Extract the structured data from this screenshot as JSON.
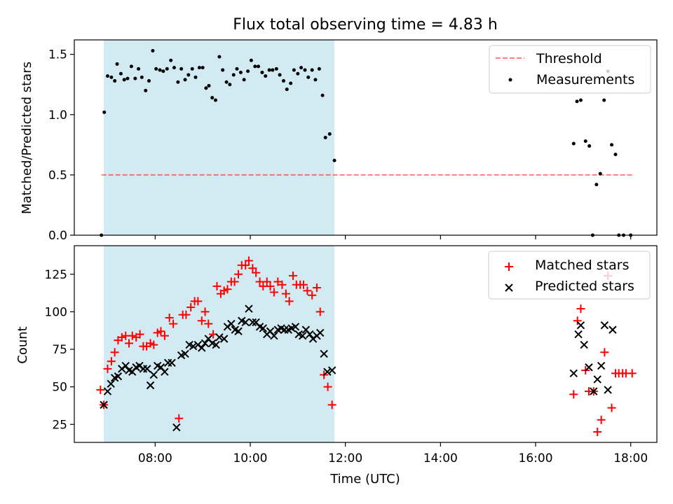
{
  "title": "Flux total observing time = 4.83 h",
  "colors": {
    "shade": "#add8e6",
    "threshold": "#ff0000",
    "measurement": "#000000",
    "matched": "#ff0000",
    "predicted": "#000000"
  },
  "chart_data": [
    {
      "type": "scatter",
      "ylabel": "Matched/Predicted stars",
      "ylim": [
        0,
        1.62
      ],
      "yticks": [
        0.0,
        0.5,
        1.0,
        1.5
      ],
      "ytick_labels": [
        "0.0",
        "0.5",
        "1.0",
        "1.5"
      ],
      "xlim": [
        6.3,
        18.55
      ],
      "xticks": [
        8,
        10,
        12,
        14,
        16,
        18
      ],
      "shaded_span": [
        6.92,
        11.77
      ],
      "threshold": {
        "name": "Threshold",
        "value": 0.5,
        "x_range": [
          6.87,
          18.05
        ],
        "style": "dashed"
      },
      "legend": {
        "placement": "top-right",
        "entries": [
          "Threshold",
          "Measurements"
        ]
      },
      "series": [
        {
          "name": "Measurements",
          "points": [
            [
              6.87,
              0.0
            ],
            [
              6.93,
              1.02
            ],
            [
              7.0,
              1.32
            ],
            [
              7.08,
              1.31
            ],
            [
              7.15,
              1.28
            ],
            [
              7.2,
              1.42
            ],
            [
              7.28,
              1.34
            ],
            [
              7.35,
              1.29
            ],
            [
              7.42,
              1.3
            ],
            [
              7.5,
              1.4
            ],
            [
              7.58,
              1.3
            ],
            [
              7.65,
              1.38
            ],
            [
              7.72,
              1.31
            ],
            [
              7.8,
              1.2
            ],
            [
              7.87,
              1.28
            ],
            [
              7.95,
              1.53
            ],
            [
              8.02,
              1.38
            ],
            [
              8.1,
              1.37
            ],
            [
              8.17,
              1.36
            ],
            [
              8.25,
              1.38
            ],
            [
              8.33,
              1.45
            ],
            [
              8.4,
              1.39
            ],
            [
              8.48,
              1.27
            ],
            [
              8.55,
              1.38
            ],
            [
              8.63,
              1.29
            ],
            [
              8.7,
              1.33
            ],
            [
              8.78,
              1.38
            ],
            [
              8.85,
              1.31
            ],
            [
              8.93,
              1.39
            ],
            [
              9.0,
              1.39
            ],
            [
              9.07,
              1.22
            ],
            [
              9.13,
              1.24
            ],
            [
              9.2,
              1.14
            ],
            [
              9.27,
              1.12
            ],
            [
              9.35,
              1.48
            ],
            [
              9.42,
              1.37
            ],
            [
              9.5,
              1.27
            ],
            [
              9.57,
              1.25
            ],
            [
              9.65,
              1.33
            ],
            [
              9.72,
              1.38
            ],
            [
              9.8,
              1.35
            ],
            [
              9.87,
              1.29
            ],
            [
              9.95,
              1.36
            ],
            [
              10.02,
              1.45
            ],
            [
              10.1,
              1.4
            ],
            [
              10.17,
              1.4
            ],
            [
              10.25,
              1.35
            ],
            [
              10.32,
              1.32
            ],
            [
              10.4,
              1.37
            ],
            [
              10.47,
              1.37
            ],
            [
              10.55,
              1.38
            ],
            [
              10.62,
              1.33
            ],
            [
              10.7,
              1.28
            ],
            [
              10.77,
              1.21
            ],
            [
              10.85,
              1.26
            ],
            [
              10.92,
              1.37
            ],
            [
              11.0,
              1.34
            ],
            [
              11.07,
              1.39
            ],
            [
              11.15,
              1.37
            ],
            [
              11.22,
              1.31
            ],
            [
              11.3,
              1.37
            ],
            [
              11.37,
              1.29
            ],
            [
              11.45,
              1.38
            ],
            [
              11.52,
              1.16
            ],
            [
              11.58,
              0.81
            ],
            [
              11.67,
              0.84
            ],
            [
              11.77,
              0.62
            ],
            [
              16.8,
              0.76
            ],
            [
              16.87,
              1.11
            ],
            [
              16.95,
              1.12
            ],
            [
              17.05,
              0.78
            ],
            [
              17.13,
              0.74
            ],
            [
              17.2,
              0.0
            ],
            [
              17.28,
              0.42
            ],
            [
              17.36,
              0.51
            ],
            [
              17.44,
              1.12
            ],
            [
              17.52,
              1.36
            ],
            [
              17.6,
              0.75
            ],
            [
              17.68,
              0.67
            ],
            [
              17.75,
              0.0
            ],
            [
              17.85,
              0.0
            ],
            [
              18.0,
              0.0
            ]
          ]
        }
      ]
    },
    {
      "type": "scatter",
      "xlabel": "Time (UTC)",
      "ylabel": "Count",
      "ylim": [
        13,
        144
      ],
      "yticks": [
        25,
        50,
        75,
        100,
        125
      ],
      "ytick_labels": [
        "25",
        "50",
        "75",
        "100",
        "125"
      ],
      "xlim": [
        6.3,
        18.55
      ],
      "xticks": [
        8,
        10,
        12,
        14,
        16,
        18
      ],
      "xtick_labels": [
        "08:00",
        "10:00",
        "12:00",
        "14:00",
        "16:00",
        "18:00"
      ],
      "shaded_span": [
        6.92,
        11.77
      ],
      "legend": {
        "placement": "top-right",
        "entries": [
          "Matched stars",
          "Predicted stars"
        ]
      },
      "series": [
        {
          "name": "Matched stars",
          "marker": "+",
          "points": [
            [
              6.85,
              48
            ],
            [
              6.92,
              38
            ],
            [
              7.0,
              62
            ],
            [
              7.08,
              67
            ],
            [
              7.15,
              73
            ],
            [
              7.22,
              81
            ],
            [
              7.3,
              83
            ],
            [
              7.38,
              84
            ],
            [
              7.45,
              79
            ],
            [
              7.52,
              84
            ],
            [
              7.6,
              83
            ],
            [
              7.68,
              85
            ],
            [
              7.75,
              77
            ],
            [
              7.82,
              77
            ],
            [
              7.9,
              79
            ],
            [
              7.97,
              78
            ],
            [
              8.05,
              86
            ],
            [
              8.12,
              87
            ],
            [
              8.2,
              84
            ],
            [
              8.3,
              96
            ],
            [
              8.38,
              92
            ],
            [
              8.5,
              29
            ],
            [
              8.58,
              98
            ],
            [
              8.65,
              98
            ],
            [
              8.75,
              103
            ],
            [
              8.83,
              107
            ],
            [
              8.9,
              107
            ],
            [
              8.98,
              94
            ],
            [
              9.05,
              100
            ],
            [
              9.12,
              92
            ],
            [
              9.22,
              85
            ],
            [
              9.3,
              117
            ],
            [
              9.38,
              112
            ],
            [
              9.45,
              114
            ],
            [
              9.52,
              115
            ],
            [
              9.6,
              120
            ],
            [
              9.67,
              120
            ],
            [
              9.75,
              125
            ],
            [
              9.82,
              131
            ],
            [
              9.9,
              131
            ],
            [
              9.97,
              134
            ],
            [
              10.05,
              129
            ],
            [
              10.12,
              126
            ],
            [
              10.2,
              120
            ],
            [
              10.27,
              117
            ],
            [
              10.35,
              120
            ],
            [
              10.42,
              117
            ],
            [
              10.5,
              113
            ],
            [
              10.58,
              120
            ],
            [
              10.67,
              118
            ],
            [
              10.75,
              112
            ],
            [
              10.82,
              107
            ],
            [
              10.9,
              124
            ],
            [
              10.97,
              118
            ],
            [
              11.05,
              118
            ],
            [
              11.12,
              118
            ],
            [
              11.2,
              114
            ],
            [
              11.3,
              111
            ],
            [
              11.4,
              116
            ],
            [
              11.47,
              100
            ],
            [
              11.55,
              58
            ],
            [
              11.63,
              50
            ],
            [
              11.72,
              38
            ],
            [
              16.8,
              45
            ],
            [
              16.88,
              94
            ],
            [
              16.95,
              102
            ],
            [
              17.05,
              61
            ],
            [
              17.12,
              47
            ],
            [
              17.22,
              47
            ],
            [
              17.3,
              20
            ],
            [
              17.38,
              28
            ],
            [
              17.45,
              73
            ],
            [
              17.52,
              124
            ],
            [
              17.6,
              36
            ],
            [
              17.68,
              59
            ],
            [
              17.75,
              59
            ],
            [
              17.83,
              59
            ],
            [
              17.9,
              59
            ],
            [
              18.03,
              59
            ]
          ]
        },
        {
          "name": "Predicted stars",
          "marker": "x",
          "points": [
            [
              6.92,
              38
            ],
            [
              7.0,
              47
            ],
            [
              7.07,
              52
            ],
            [
              7.15,
              56
            ],
            [
              7.22,
              57
            ],
            [
              7.3,
              62
            ],
            [
              7.38,
              64
            ],
            [
              7.45,
              61
            ],
            [
              7.52,
              60
            ],
            [
              7.6,
              63
            ],
            [
              7.67,
              64
            ],
            [
              7.75,
              62
            ],
            [
              7.83,
              62
            ],
            [
              7.9,
              51
            ],
            [
              7.97,
              58
            ],
            [
              8.05,
              64
            ],
            [
              8.12,
              63
            ],
            [
              8.2,
              60
            ],
            [
              8.27,
              66
            ],
            [
              8.35,
              66
            ],
            [
              8.45,
              23
            ],
            [
              8.55,
              71
            ],
            [
              8.63,
              72
            ],
            [
              8.72,
              78
            ],
            [
              8.8,
              77
            ],
            [
              8.9,
              78
            ],
            [
              8.98,
              76
            ],
            [
              9.05,
              79
            ],
            [
              9.12,
              82
            ],
            [
              9.2,
              79
            ],
            [
              9.28,
              78
            ],
            [
              9.35,
              83
            ],
            [
              9.45,
              82
            ],
            [
              9.52,
              90
            ],
            [
              9.6,
              92
            ],
            [
              9.68,
              88
            ],
            [
              9.75,
              87
            ],
            [
              9.82,
              94
            ],
            [
              9.9,
              93
            ],
            [
              9.97,
              102
            ],
            [
              10.05,
              93
            ],
            [
              10.12,
              93
            ],
            [
              10.2,
              90
            ],
            [
              10.27,
              89
            ],
            [
              10.35,
              85
            ],
            [
              10.42,
              87
            ],
            [
              10.5,
              84
            ],
            [
              10.58,
              88
            ],
            [
              10.65,
              89
            ],
            [
              10.72,
              88
            ],
            [
              10.8,
              88
            ],
            [
              10.87,
              89
            ],
            [
              10.95,
              90
            ],
            [
              11.02,
              85
            ],
            [
              11.1,
              84
            ],
            [
              11.17,
              88
            ],
            [
              11.25,
              85
            ],
            [
              11.32,
              82
            ],
            [
              11.4,
              84
            ],
            [
              11.47,
              86
            ],
            [
              11.55,
              72
            ],
            [
              11.62,
              60
            ],
            [
              11.72,
              61
            ],
            [
              16.8,
              59
            ],
            [
              16.9,
              85
            ],
            [
              16.95,
              91
            ],
            [
              17.02,
              78
            ],
            [
              17.12,
              63
            ],
            [
              17.22,
              47
            ],
            [
              17.3,
              55
            ],
            [
              17.38,
              64
            ],
            [
              17.45,
              91
            ],
            [
              17.52,
              48
            ],
            [
              17.62,
              88
            ]
          ]
        }
      ]
    }
  ]
}
